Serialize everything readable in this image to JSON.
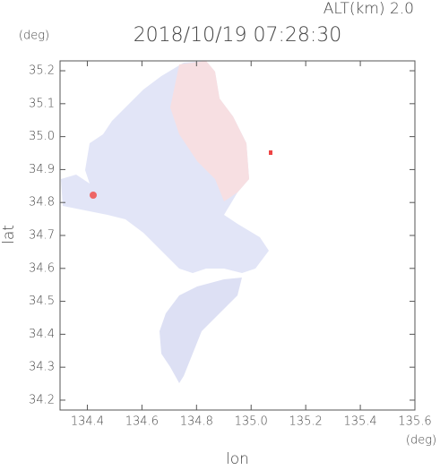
{
  "chart_data": {
    "type": "map",
    "title": "2018/10/19 07:28:30",
    "subtitle": "ALT(km) 2.0",
    "x_label": "lon",
    "x_unit": "(deg)",
    "y_label": "lat",
    "y_unit": "(deg)",
    "xlim": [
      134.3,
      135.6
    ],
    "xticks": [
      134.4,
      134.6,
      134.8,
      {
        "value": 135.0,
        "label": "135.0"
      },
      135.2,
      135.4,
      135.6
    ],
    "ylim": [
      34.17,
      35.23
    ],
    "yticks": [
      34.2,
      34.3,
      34.4,
      34.5,
      34.6,
      34.7,
      34.8,
      34.9,
      {
        "value": 35.0,
        "label": "35.0"
      },
      35.1,
      35.2
    ]
  }
}
